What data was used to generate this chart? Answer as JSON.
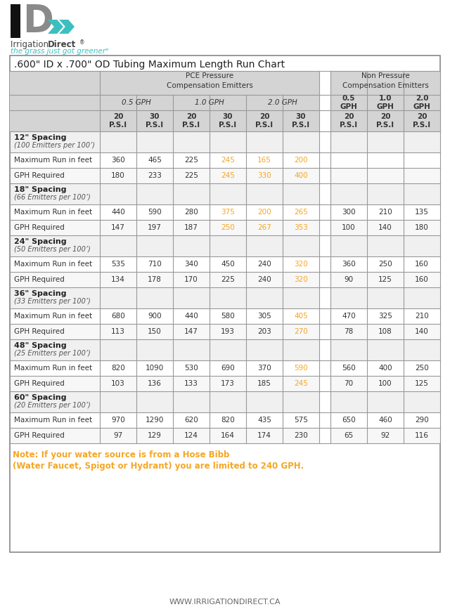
{
  "title": ".600\" ID x .700\" OD Tubing Maximum Length Run Chart",
  "background": "#ffffff",
  "orange_color": "#f5a623",
  "teal_color": "#3dbfbf",
  "header_bg": "#d4d4d4",
  "pce_section_header": "PCE Pressure\nCompensation Emitters",
  "non_pce_section_header": "Non Pressure\nCompensation Emitters",
  "spacings": [
    {
      "label": "12\" Spacing",
      "sublabel": "(100 Emitters per 100’)"
    },
    {
      "label": "18\" Spacing",
      "sublabel": "(66 Emitters per 100’)"
    },
    {
      "label": "24\" Spacing",
      "sublabel": "(50 Emitters per 100’)"
    },
    {
      "label": "36\" Spacing",
      "sublabel": "(33 Emitters per 100’)"
    },
    {
      "label": "48\" Spacing",
      "sublabel": "(25 Emitters per 100’)"
    },
    {
      "label": "60\" Spacing",
      "sublabel": "(20 Emitters per 100’)"
    }
  ],
  "data_rows": [
    {
      "max_run": [
        "360",
        "465",
        "225",
        "245",
        "165",
        "200",
        "",
        "",
        ""
      ],
      "max_run_orange": [
        false,
        false,
        false,
        true,
        true,
        true,
        false,
        false,
        false
      ],
      "gph_req": [
        "180",
        "233",
        "225",
        "245",
        "330",
        "400",
        "",
        "",
        ""
      ],
      "gph_req_orange": [
        false,
        false,
        false,
        true,
        true,
        true,
        false,
        false,
        false
      ]
    },
    {
      "max_run": [
        "440",
        "590",
        "280",
        "375",
        "200",
        "265",
        "300",
        "210",
        "135"
      ],
      "max_run_orange": [
        false,
        false,
        false,
        true,
        true,
        true,
        false,
        false,
        false
      ],
      "gph_req": [
        "147",
        "197",
        "187",
        "250",
        "267",
        "353",
        "100",
        "140",
        "180"
      ],
      "gph_req_orange": [
        false,
        false,
        false,
        true,
        true,
        true,
        false,
        false,
        false
      ]
    },
    {
      "max_run": [
        "535",
        "710",
        "340",
        "450",
        "240",
        "320",
        "360",
        "250",
        "160"
      ],
      "max_run_orange": [
        false,
        false,
        false,
        false,
        false,
        true,
        false,
        false,
        false
      ],
      "gph_req": [
        "134",
        "178",
        "170",
        "225",
        "240",
        "320",
        "90",
        "125",
        "160"
      ],
      "gph_req_orange": [
        false,
        false,
        false,
        false,
        false,
        true,
        false,
        false,
        false
      ]
    },
    {
      "max_run": [
        "680",
        "900",
        "440",
        "580",
        "305",
        "405",
        "470",
        "325",
        "210"
      ],
      "max_run_orange": [
        false,
        false,
        false,
        false,
        false,
        true,
        false,
        false,
        false
      ],
      "gph_req": [
        "113",
        "150",
        "147",
        "193",
        "203",
        "270",
        "78",
        "108",
        "140"
      ],
      "gph_req_orange": [
        false,
        false,
        false,
        false,
        false,
        true,
        false,
        false,
        false
      ]
    },
    {
      "max_run": [
        "820",
        "1090",
        "530",
        "690",
        "370",
        "590",
        "560",
        "400",
        "250"
      ],
      "max_run_orange": [
        false,
        false,
        false,
        false,
        false,
        true,
        false,
        false,
        false
      ],
      "gph_req": [
        "103",
        "136",
        "133",
        "173",
        "185",
        "245",
        "70",
        "100",
        "125"
      ],
      "gph_req_orange": [
        false,
        false,
        false,
        false,
        false,
        true,
        false,
        false,
        false
      ]
    },
    {
      "max_run": [
        "970",
        "1290",
        "620",
        "820",
        "435",
        "575",
        "650",
        "460",
        "290"
      ],
      "max_run_orange": [
        false,
        false,
        false,
        false,
        false,
        false,
        false,
        false,
        false
      ],
      "gph_req": [
        "97",
        "129",
        "124",
        "164",
        "174",
        "230",
        "65",
        "92",
        "116"
      ],
      "gph_req_orange": [
        false,
        false,
        false,
        false,
        false,
        false,
        false,
        false,
        false
      ]
    }
  ],
  "note_line1": "Note: If your water source is from a Hose Bibb",
  "note_line2": "(Water Faucet, Spigot or Hydrant) you are limited to 240 GPH.",
  "website": "WWW.IRRIGATIONDIRECT.CA"
}
